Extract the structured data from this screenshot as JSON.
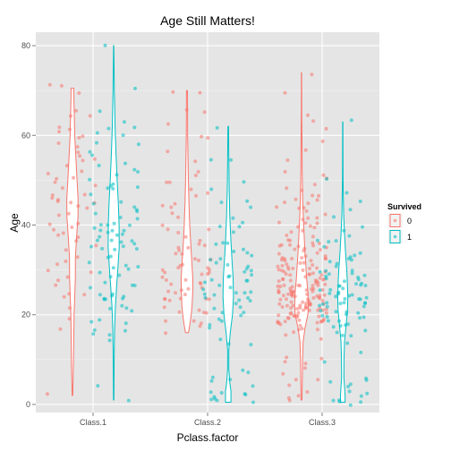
{
  "chart_data": {
    "type": "violin",
    "title": "Age Still Matters!",
    "xlabel": "Pclass.factor",
    "ylabel": "Age",
    "categories": [
      "Class.1",
      "Class.2",
      "Class.3"
    ],
    "ylim": [
      -1.8,
      83
    ],
    "yticks": [
      0,
      20,
      40,
      60,
      80
    ],
    "grid": true,
    "legend": {
      "title": "Survived",
      "position": "right",
      "entries": [
        {
          "label": "0",
          "color": "#f8766d"
        },
        {
          "label": "1",
          "color": "#00bfc4"
        }
      ]
    },
    "colors": {
      "panel": "#e5e5e5",
      "grid": "#ffffff",
      "s0": "#f8766d",
      "s1": "#00bfc4"
    },
    "violins": [
      {
        "category": "Class.1",
        "survived": "0",
        "profile": [
          [
            2,
            0.03
          ],
          [
            10,
            0.09
          ],
          [
            20,
            0.14
          ],
          [
            28,
            0.25
          ],
          [
            33,
            0.26
          ],
          [
            38,
            0.38
          ],
          [
            42,
            0.49
          ],
          [
            46,
            0.49
          ],
          [
            50,
            0.4
          ],
          [
            55,
            0.3
          ],
          [
            60,
            0.2
          ],
          [
            64,
            0.17
          ],
          [
            68,
            0.13
          ],
          [
            70.5,
            0.12
          ]
        ]
      },
      {
        "category": "Class.1",
        "survived": "1",
        "profile": [
          [
            1,
            0.02
          ],
          [
            5,
            0.03
          ],
          [
            12,
            0.05
          ],
          [
            17,
            0.08
          ],
          [
            22,
            0.15
          ],
          [
            26,
            0.25
          ],
          [
            30,
            0.36
          ],
          [
            35,
            0.48
          ],
          [
            40,
            0.47
          ],
          [
            45,
            0.4
          ],
          [
            50,
            0.3
          ],
          [
            56,
            0.2
          ],
          [
            62,
            0.12
          ],
          [
            70,
            0.06
          ],
          [
            80,
            0.01
          ]
        ]
      },
      {
        "category": "Class.2",
        "survived": "0",
        "profile": [
          [
            16,
            0.13
          ],
          [
            18,
            0.26
          ],
          [
            20,
            0.37
          ],
          [
            22,
            0.44
          ],
          [
            25,
            0.5
          ],
          [
            28,
            0.51
          ],
          [
            32,
            0.42
          ],
          [
            36,
            0.32
          ],
          [
            40,
            0.24
          ],
          [
            45,
            0.17
          ],
          [
            50,
            0.12
          ],
          [
            55,
            0.09
          ],
          [
            60,
            0.06
          ],
          [
            65,
            0.05
          ],
          [
            70,
            0.04
          ]
        ]
      },
      {
        "category": "Class.2",
        "survived": "1",
        "profile": [
          [
            0.5,
            0.24
          ],
          [
            3,
            0.24
          ],
          [
            5,
            0.13
          ],
          [
            8,
            0.05
          ],
          [
            12,
            0.05
          ],
          [
            16,
            0.18
          ],
          [
            20,
            0.37
          ],
          [
            24,
            0.46
          ],
          [
            28,
            0.43
          ],
          [
            32,
            0.33
          ],
          [
            37,
            0.22
          ],
          [
            42,
            0.14
          ],
          [
            48,
            0.08
          ],
          [
            55,
            0.05
          ],
          [
            62,
            0.03
          ]
        ]
      },
      {
        "category": "Class.3",
        "survived": "0",
        "profile": [
          [
            1,
            0.04
          ],
          [
            3,
            0.05
          ],
          [
            6,
            0.07
          ],
          [
            10,
            0.09
          ],
          [
            14,
            0.14
          ],
          [
            17,
            0.3
          ],
          [
            20,
            0.55
          ],
          [
            22,
            0.6
          ],
          [
            25,
            0.56
          ],
          [
            28,
            0.45
          ],
          [
            31,
            0.38
          ],
          [
            34,
            0.3
          ],
          [
            38,
            0.22
          ],
          [
            42,
            0.15
          ],
          [
            46,
            0.1
          ],
          [
            52,
            0.06
          ],
          [
            58,
            0.04
          ],
          [
            65,
            0.02
          ],
          [
            74,
            0.01
          ]
        ]
      },
      {
        "category": "Class.3",
        "survived": "1",
        "profile": [
          [
            0.5,
            0.2
          ],
          [
            2,
            0.2
          ],
          [
            4,
            0.15
          ],
          [
            6,
            0.1
          ],
          [
            10,
            0.11
          ],
          [
            14,
            0.15
          ],
          [
            18,
            0.3
          ],
          [
            21,
            0.41
          ],
          [
            24,
            0.44
          ],
          [
            27,
            0.4
          ],
          [
            30,
            0.35
          ],
          [
            34,
            0.24
          ],
          [
            38,
            0.15
          ],
          [
            42,
            0.08
          ],
          [
            46,
            0.05
          ],
          [
            50,
            0.03
          ],
          [
            55,
            0.02
          ],
          [
            63,
            0.01
          ]
        ]
      }
    ],
    "points": [
      {
        "category": "Class.1",
        "survived": "0",
        "ages": [
          2,
          25,
          47,
          55,
          36,
          64,
          61,
          71,
          45,
          33,
          28,
          50,
          65,
          46,
          39,
          56,
          30,
          49,
          58,
          24,
          60,
          42,
          37,
          50,
          52,
          40,
          45,
          62,
          48,
          54,
          70,
          31,
          35,
          38,
          44,
          45,
          29,
          32,
          36,
          46,
          51,
          47,
          27,
          58,
          40,
          22,
          19,
          44,
          60,
          64,
          40,
          56,
          24,
          38,
          42,
          29,
          17,
          49,
          53,
          71,
          61
        ]
      },
      {
        "category": "Class.1",
        "survived": "1",
        "ages": [
          1,
          4,
          14,
          15,
          16,
          17,
          18,
          19,
          21,
          22,
          23,
          24,
          25,
          26,
          27,
          29,
          30,
          31,
          32,
          33,
          34,
          35,
          35,
          35,
          36,
          36,
          37,
          38,
          38,
          39,
          39,
          40,
          40,
          41,
          42,
          43,
          44,
          45,
          47,
          48,
          49,
          50,
          51,
          52,
          53,
          54,
          56,
          58,
          60,
          62,
          63,
          65,
          70,
          80,
          24,
          27,
          30,
          33,
          36,
          39,
          42,
          45,
          48,
          24,
          26,
          35,
          38,
          48,
          52,
          56,
          19,
          23,
          29,
          31,
          44,
          49,
          61,
          16,
          36,
          40,
          39,
          21,
          25,
          58,
          60,
          22,
          24,
          36,
          40,
          29
        ]
      },
      {
        "category": "Class.2",
        "survived": "0",
        "ages": [
          16,
          18,
          19,
          20,
          21,
          21,
          22,
          23,
          23,
          24,
          24,
          25,
          25,
          26,
          26,
          27,
          27,
          28,
          28,
          29,
          29,
          30,
          30,
          31,
          31,
          32,
          32,
          33,
          34,
          35,
          36,
          36,
          37,
          38,
          39,
          40,
          42,
          43,
          44,
          45,
          46,
          47,
          48,
          50,
          51,
          52,
          54,
          57,
          59,
          60,
          62,
          65,
          66,
          69,
          70,
          18,
          21,
          24,
          27,
          30,
          33,
          36,
          39,
          25,
          28,
          31,
          34,
          24,
          35,
          19,
          23,
          29,
          31,
          44,
          50
        ]
      },
      {
        "category": "Class.2",
        "survived": "1",
        "ages": [
          0.67,
          0.83,
          1,
          1,
          2,
          2,
          3,
          3,
          4,
          5,
          5,
          6,
          7,
          8,
          13,
          14,
          15,
          17,
          18,
          19,
          20,
          21,
          22,
          22,
          23,
          24,
          24,
          25,
          25,
          26,
          27,
          27,
          28,
          28,
          29,
          30,
          30,
          31,
          32,
          33,
          34,
          35,
          36,
          38,
          40,
          41,
          42,
          44,
          45,
          48,
          50,
          54,
          55,
          62,
          19,
          21,
          23,
          26,
          28,
          31,
          34,
          36,
          24,
          25,
          27,
          29,
          32,
          36,
          40,
          33,
          25,
          20,
          30,
          45,
          2
        ]
      },
      {
        "category": "Class.3",
        "survived": "0",
        "ages": [
          1,
          2,
          2,
          3,
          4,
          5,
          6,
          7,
          8,
          9,
          9,
          10,
          11,
          14,
          16,
          16,
          17,
          17,
          17,
          18,
          18,
          18,
          18,
          19,
          19,
          19,
          19,
          19,
          20,
          20,
          20,
          20,
          20,
          21,
          21,
          21,
          21,
          21,
          21,
          22,
          22,
          22,
          22,
          22,
          22,
          22,
          23,
          23,
          23,
          23,
          23,
          24,
          24,
          24,
          24,
          24,
          24,
          25,
          25,
          25,
          25,
          25,
          25,
          26,
          26,
          26,
          26,
          26,
          27,
          27,
          27,
          27,
          28,
          28,
          28,
          28,
          28,
          28,
          29,
          29,
          29,
          29,
          30,
          30,
          30,
          30,
          30,
          31,
          31,
          31,
          31,
          32,
          32,
          32,
          32,
          33,
          33,
          33,
          34,
          34,
          34,
          35,
          35,
          35,
          36,
          36,
          36,
          37,
          37,
          38,
          38,
          39,
          39,
          40,
          40,
          40,
          41,
          41,
          42,
          42,
          43,
          44,
          44,
          45,
          45,
          46,
          47,
          48,
          49,
          50,
          51,
          52,
          55,
          57,
          59,
          61,
          63,
          65,
          70,
          74,
          18,
          19,
          20,
          21,
          22,
          23,
          24,
          25,
          26,
          27,
          28,
          29,
          30,
          31,
          32,
          33,
          34,
          35,
          20,
          22,
          24,
          26,
          28,
          30,
          21,
          23,
          25,
          27,
          29,
          22,
          24,
          18,
          20,
          36,
          40,
          44,
          48,
          33,
          22,
          26,
          19,
          24,
          28,
          32,
          45,
          38,
          21,
          25,
          17,
          30,
          23,
          27,
          31,
          35,
          20,
          24,
          28,
          26,
          39,
          22,
          29,
          34,
          25,
          21,
          47,
          31
        ]
      },
      {
        "category": "Class.3",
        "survived": "1",
        "ages": [
          0.42,
          0.75,
          0.92,
          1,
          1,
          2,
          3,
          3,
          4,
          4,
          5,
          5,
          6,
          9,
          12,
          14,
          15,
          15,
          16,
          17,
          17,
          18,
          18,
          18,
          19,
          19,
          19,
          20,
          20,
          21,
          21,
          21,
          22,
          22,
          22,
          22,
          23,
          23,
          24,
          24,
          24,
          24,
          25,
          25,
          25,
          26,
          26,
          26,
          27,
          27,
          27,
          28,
          28,
          29,
          29,
          29,
          30,
          30,
          31,
          31,
          32,
          32,
          33,
          33,
          34,
          35,
          36,
          37,
          38,
          39,
          40,
          42,
          44,
          45,
          47,
          50,
          63,
          20,
          22,
          24,
          26,
          28,
          30,
          23,
          25,
          27,
          21,
          24,
          27,
          32,
          36,
          19,
          23,
          28,
          26
        ]
      }
    ]
  }
}
